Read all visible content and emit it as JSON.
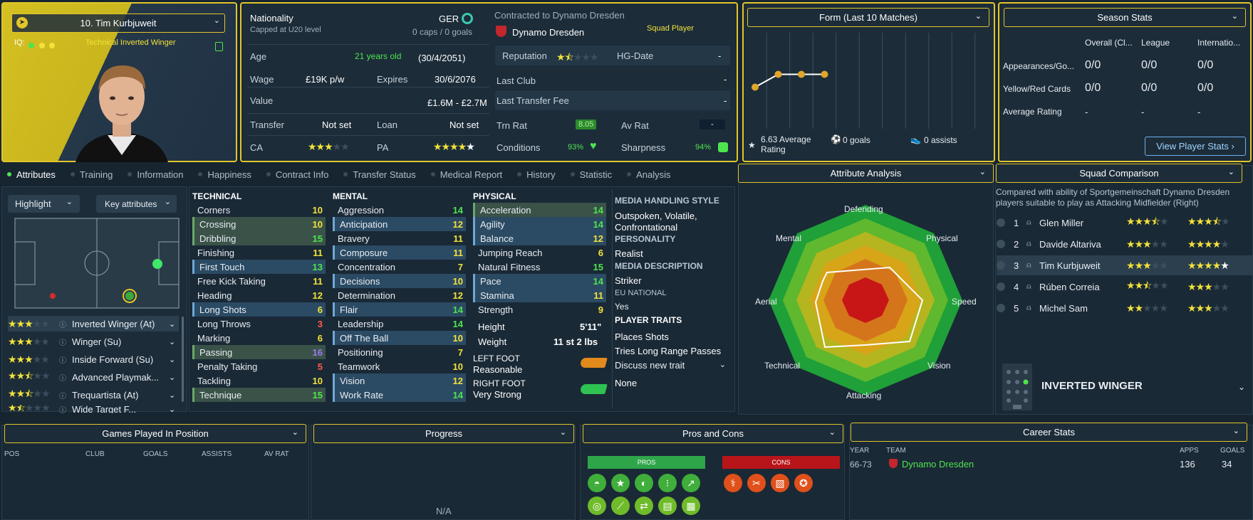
{
  "player": {
    "name": "10. Tim Kurbjuweit",
    "role": "Technical Inverted Winger",
    "iq_label": "IQ:"
  },
  "info": {
    "nationality_label": "Nationality",
    "nationality_sub": "Capped at U20 level",
    "nation_code": "GER",
    "caps": "0 caps / 0 goals",
    "contract_label": "Contracted to Dynamo Dresden",
    "club": "Dynamo Dresden",
    "squad_status": "Squad Player",
    "age_label": "Age",
    "age_value": "21 years old",
    "dob": "(30/4/2051)",
    "wage_label": "Wage",
    "wage_value": "£19K p/w",
    "expires_label": "Expires",
    "expires_value": "30/6/2076",
    "value_label": "Value",
    "value_value": "£1.6M - £2.7M",
    "transfer_label": "Transfer",
    "transfer_value": "Not set",
    "loan_label": "Loan",
    "loan_value": "Not set",
    "ca_label": "CA",
    "pa_label": "PA",
    "reputation_label": "Reputation",
    "hg_label": "HG-Date",
    "hg_value": "-",
    "last_club_label": "Last Club",
    "last_club_value": "-",
    "last_fee_label": "Last Transfer Fee",
    "last_fee_value": "-",
    "trn_label": "Trn Rat",
    "trn_value": "8.05",
    "avrat_label": "Av Rat",
    "avrat_value": "-",
    "conditions_label": "Conditions",
    "conditions_value": "93%",
    "sharpness_label": "Sharpness",
    "sharpness_value": "94%"
  },
  "form": {
    "title": "Form (Last 10 Matches)",
    "avg": "6.63 Average Rating",
    "goals": "0 goals",
    "assists": "0 assists",
    "points": [
      6.3,
      6.7,
      6.7,
      6.7
    ]
  },
  "season": {
    "title": "Season Stats",
    "cols": [
      "Overall (Cl...",
      "League",
      "Internatio..."
    ],
    "rows": [
      {
        "label": "Appearances/Go...",
        "vals": [
          "0/0",
          "0/0",
          "0/0"
        ]
      },
      {
        "label": "Yellow/Red Cards",
        "vals": [
          "0/0",
          "0/0",
          "0/0"
        ]
      },
      {
        "label": "Average Rating",
        "vals": [
          "-",
          "-",
          "-"
        ]
      }
    ],
    "button": "View Player Stats ›"
  },
  "tabs": [
    "Attributes",
    "Training",
    "Information",
    "Happiness",
    "Contract Info",
    "Transfer Status",
    "Medical Report",
    "History",
    "Statistic",
    "Analysis"
  ],
  "left_controls": {
    "highlight": "Highlight",
    "key_attrs": "Key attributes"
  },
  "roles": [
    {
      "name": "Inverted Winger (At)"
    },
    {
      "name": "Winger (Su)"
    },
    {
      "name": "Inside Forward (Su)"
    },
    {
      "name": "Advanced Playmak..."
    },
    {
      "name": "Trequartista (At)"
    },
    {
      "name": "Wide Target F..."
    }
  ],
  "technical": {
    "title": "TECHNICAL",
    "items": [
      {
        "n": "Corners",
        "v": "10"
      },
      {
        "n": "Crossing",
        "v": "10"
      },
      {
        "n": "Dribbling",
        "v": "15"
      },
      {
        "n": "Finishing",
        "v": "11"
      },
      {
        "n": "First Touch",
        "v": "13"
      },
      {
        "n": "Free Kick Taking",
        "v": "11"
      },
      {
        "n": "Heading",
        "v": "12"
      },
      {
        "n": "Long Shots",
        "v": "6"
      },
      {
        "n": "Long Throws",
        "v": "3"
      },
      {
        "n": "Marking",
        "v": "6"
      },
      {
        "n": "Passing",
        "v": "16"
      },
      {
        "n": "Penalty Taking",
        "v": "5"
      },
      {
        "n": "Tackling",
        "v": "10"
      },
      {
        "n": "Technique",
        "v": "15"
      }
    ]
  },
  "mental": {
    "title": "MENTAL",
    "items": [
      {
        "n": "Aggression",
        "v": "14"
      },
      {
        "n": "Anticipation",
        "v": "12"
      },
      {
        "n": "Bravery",
        "v": "11"
      },
      {
        "n": "Composure",
        "v": "11"
      },
      {
        "n": "Concentration",
        "v": "7"
      },
      {
        "n": "Decisions",
        "v": "10"
      },
      {
        "n": "Determination",
        "v": "12"
      },
      {
        "n": "Flair",
        "v": "14"
      },
      {
        "n": "Leadership",
        "v": "14"
      },
      {
        "n": "Off The Ball",
        "v": "10"
      },
      {
        "n": "Positioning",
        "v": "7"
      },
      {
        "n": "Teamwork",
        "v": "10"
      },
      {
        "n": "Vision",
        "v": "12"
      },
      {
        "n": "Work Rate",
        "v": "14"
      }
    ]
  },
  "physical": {
    "title": "PHYSICAL",
    "items": [
      {
        "n": "Acceleration",
        "v": "14"
      },
      {
        "n": "Agility",
        "v": "14"
      },
      {
        "n": "Balance",
        "v": "12"
      },
      {
        "n": "Jumping Reach",
        "v": "6"
      },
      {
        "n": "Natural Fitness",
        "v": "15"
      },
      {
        "n": "Pace",
        "v": "14"
      },
      {
        "n": "Stamina",
        "v": "11"
      },
      {
        "n": "Strength",
        "v": "9"
      }
    ],
    "height_label": "Height",
    "height": "5'11\"",
    "weight_label": "Weight",
    "weight": "11 st 2 lbs",
    "left_foot_label": "LEFT FOOT",
    "left_foot": "Reasonable",
    "right_foot_label": "RIGHT FOOT",
    "right_foot": "Very Strong"
  },
  "personality": {
    "media_style_label": "MEDIA HANDLING STYLE",
    "media_style": "Outspoken, Volatile, Confrontational",
    "personality_label": "PERSONALITY",
    "personality": "Realist",
    "media_desc_label": "MEDIA DESCRIPTION",
    "media_desc": "Striker",
    "eu_label": "EU NATIONAL",
    "eu": "Yes",
    "traits_label": "PLAYER TRAITS",
    "traits": [
      "Places Shots",
      "Tries Long Range Passes"
    ],
    "discuss": "Discuss new trait",
    "none": "None"
  },
  "analysis": {
    "title": "Attribute Analysis",
    "axes": [
      "Defending",
      "Physical",
      "Speed",
      "Vision",
      "Attacking",
      "Technical",
      "Aerial",
      "Mental"
    ]
  },
  "squad": {
    "title": "Squad Comparison",
    "desc": "Compared with ability of Sportgemeinschaft Dynamo Dresden players suitable to play as Attacking Midfielder (Right)",
    "players": [
      {
        "rank": "1",
        "name": "Glen Miller"
      },
      {
        "rank": "2",
        "name": "Davide Altariva"
      },
      {
        "rank": "3",
        "name": "Tim Kurbjuweit"
      },
      {
        "rank": "4",
        "name": "Rúben Correia"
      },
      {
        "rank": "5",
        "name": "Michel Sam"
      }
    ],
    "position": "INVERTED WINGER"
  },
  "bottom": {
    "games_title": "Games Played In Position",
    "games_cols": [
      "POS",
      "CLUB",
      "GOALS",
      "ASSISTS",
      "AV RAT"
    ],
    "progress_title": "Progress",
    "progress_na": "N/A",
    "pros_title": "Pros and Cons",
    "pros_label": "PROS",
    "cons_label": "CONS",
    "career_title": "Career Stats",
    "career_cols": [
      "YEAR",
      "TEAM",
      "APPS",
      "GOALS"
    ],
    "career_row": {
      "year": "66-73",
      "team": "Dynamo Dresden",
      "apps": "136",
      "goals": "34"
    }
  },
  "colors": {
    "accent": "#e2c52b",
    "good": "#4ee44e",
    "bg": "#172531"
  }
}
